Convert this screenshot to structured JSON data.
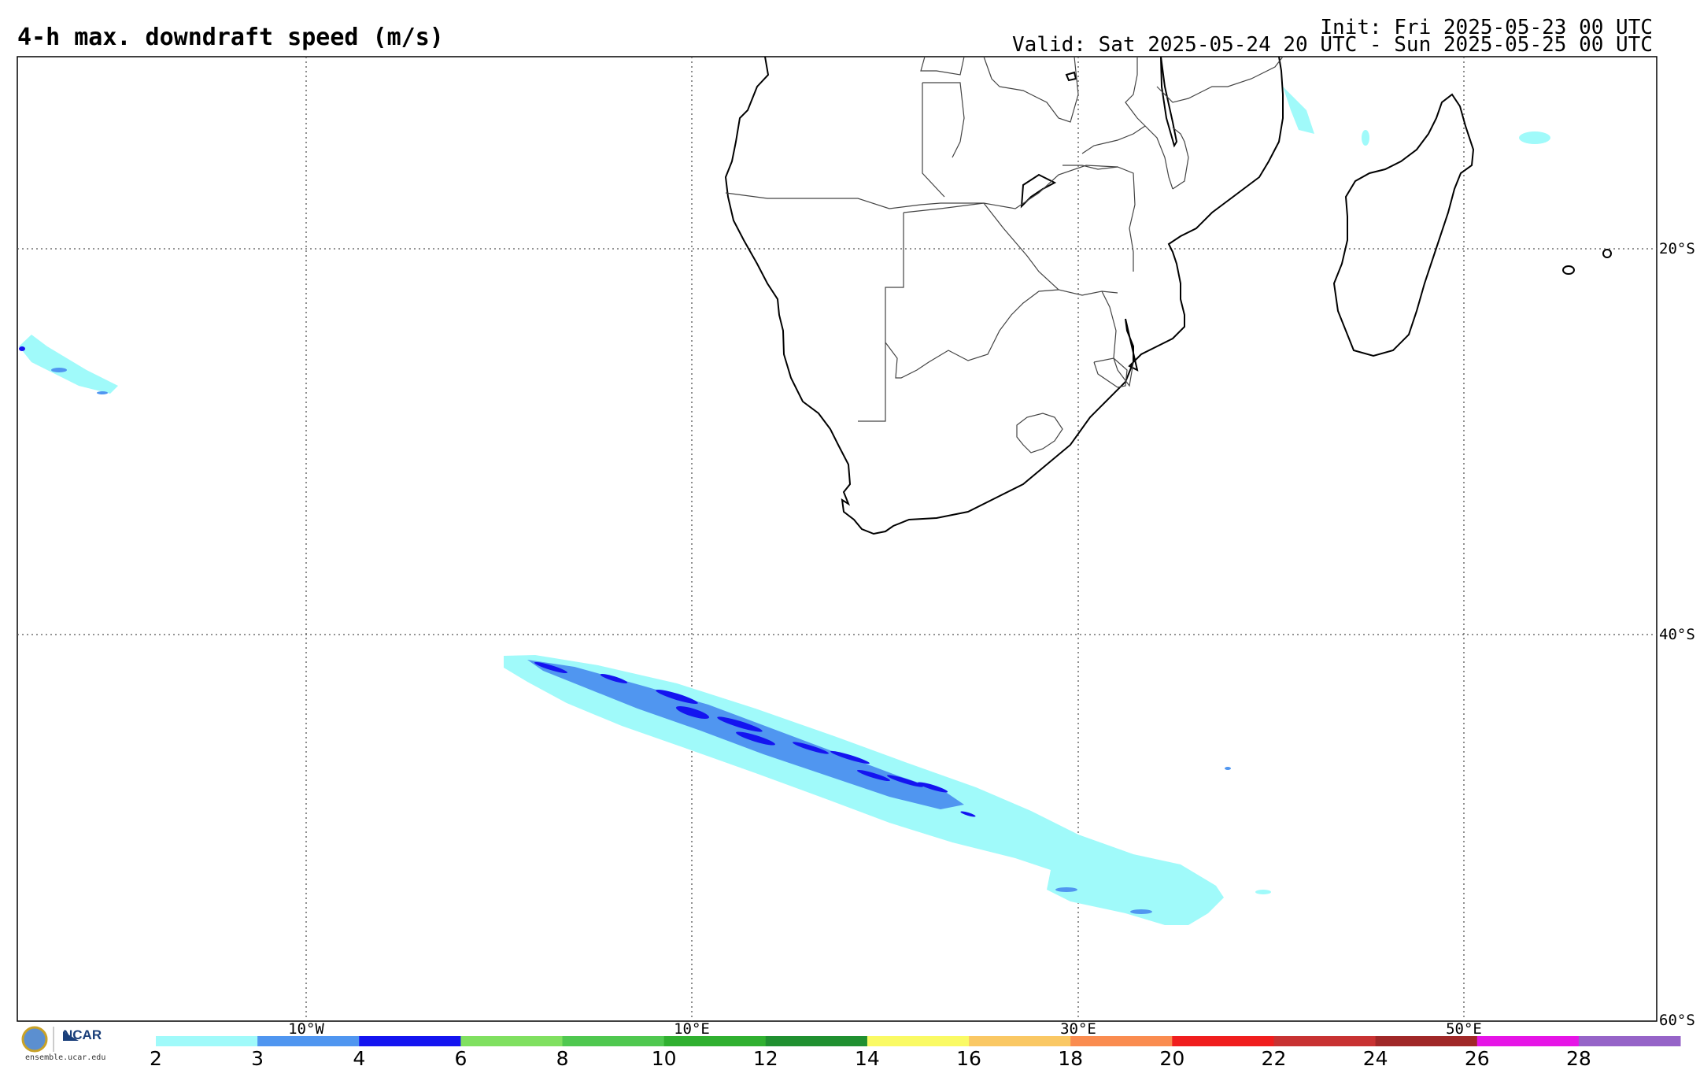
{
  "title": "4-h max. downdraft speed (m/s)",
  "init": "Init: Fri 2025-05-23 00 UTC",
  "valid": "Valid: Sat 2025-05-24 20 UTC - Sun 2025-05-25 00 UTC",
  "latitude_labels": [
    "20°S",
    "40°S",
    "60°S"
  ],
  "longitude_labels": [
    "10°W",
    "10°E",
    "30°E",
    "50°E"
  ],
  "colorbar": {
    "levels": [
      "2",
      "3",
      "4",
      "6",
      "8",
      "10",
      "12",
      "14",
      "16",
      "18",
      "20",
      "22",
      "24",
      "26",
      "28"
    ],
    "colors": [
      "#a0fafa",
      "#5096f0",
      "#1414f0",
      "#80e060",
      "#50c850",
      "#30b030",
      "#209030",
      "#fafa64",
      "#fac864",
      "#fa8c50",
      "#f01e1e",
      "#c83232",
      "#a02828",
      "#e614e6",
      "#9664c8"
    ]
  },
  "logo": {
    "org": "NCAR",
    "url": "ensemble.ucar.edu",
    "icon": "nsf-seal-icon"
  }
}
